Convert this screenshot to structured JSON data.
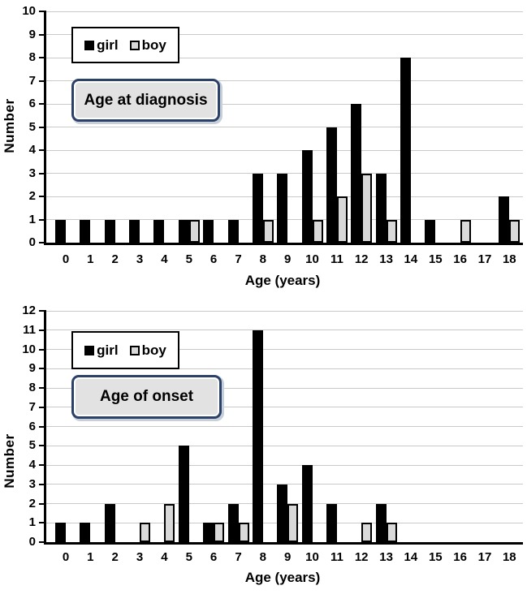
{
  "styles": {
    "girl_color": "#000000",
    "boy_color": "#d9d9d9",
    "bar_border": "#000000",
    "gridline_color": "#c9c9c9",
    "axis_color": "#000000",
    "title_box_fill": "#e2e2e2",
    "title_box_border": "#2c4168",
    "legend_border": "#000000",
    "background": "#ffffff",
    "text_color": "#000000"
  },
  "chart_data": [
    {
      "type": "bar",
      "title": "Age at diagnosis",
      "xlabel": "Age (years)",
      "ylabel": "Number",
      "ylim": [
        0,
        10
      ],
      "ytick_step": 1,
      "grid": true,
      "legend_position": "top-left",
      "categories": [
        0,
        1,
        2,
        3,
        4,
        5,
        6,
        7,
        8,
        9,
        10,
        11,
        12,
        13,
        14,
        15,
        16,
        17,
        18
      ],
      "series": [
        {
          "name": "girl",
          "color": "#000000",
          "values": [
            1,
            1,
            1,
            1,
            1,
            1,
            1,
            1,
            3,
            3,
            4,
            5,
            6,
            3,
            8,
            1,
            0,
            0,
            2
          ]
        },
        {
          "name": "boy",
          "color": "#d9d9d9",
          "values": [
            0,
            0,
            0,
            0,
            0,
            1,
            0,
            0,
            1,
            0,
            1,
            2,
            3,
            1,
            0,
            0,
            1,
            0,
            1
          ]
        }
      ]
    },
    {
      "type": "bar",
      "title": "Age of onset",
      "xlabel": "Age (years)",
      "ylabel": "Number",
      "ylim": [
        0,
        12
      ],
      "ytick_step": 1,
      "grid": true,
      "legend_position": "top-left",
      "categories": [
        0,
        1,
        2,
        3,
        4,
        5,
        6,
        7,
        8,
        9,
        10,
        11,
        12,
        13,
        14,
        15,
        16,
        17,
        18
      ],
      "series": [
        {
          "name": "girl",
          "color": "#000000",
          "values": [
            1,
            1,
            2,
            0,
            0,
            5,
            1,
            2,
            11,
            3,
            4,
            2,
            0,
            2,
            0,
            0,
            0,
            0,
            0
          ]
        },
        {
          "name": "boy",
          "color": "#d9d9d9",
          "values": [
            0,
            0,
            0,
            1,
            2,
            0,
            1,
            1,
            0,
            2,
            0,
            0,
            1,
            1,
            0,
            0,
            0,
            0,
            0
          ]
        }
      ]
    }
  ]
}
